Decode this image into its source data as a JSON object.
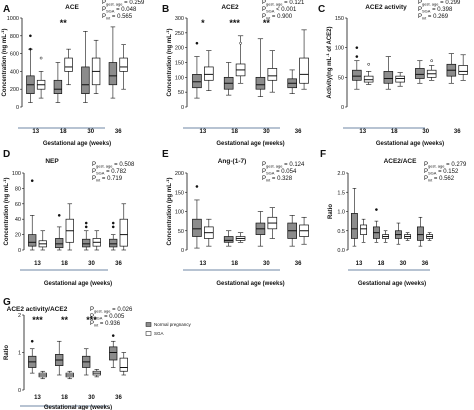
{
  "chart_data": [
    {
      "panel": "A",
      "title": "ACE",
      "type": "box",
      "categories": [
        "13",
        "18",
        "30",
        "36"
      ],
      "xlabel": "Gestational age (weeks)",
      "ylabel": "Concentration (ng mL",
      "ylim": [
        0,
        1000
      ],
      "yticks": [
        "0",
        "200",
        "400",
        "600",
        "800",
        "1000"
      ],
      "stats": [
        {
          "label": "P",
          "sub": "gest. age",
          "value": "= 0.259"
        },
        {
          "label": "P",
          "sub": "SGA",
          "value": "= 0.048"
        },
        {
          "label": "P",
          "sub": "int",
          "value": "= 0.565"
        }
      ],
      "significance": [
        {
          "category": "18",
          "text": "**"
        }
      ],
      "series": [
        {
          "name": "Normal pregnancy",
          "boxes": [
            {
              "min": 50,
              "q1": 150,
              "median": 250,
              "q3": 350,
              "max": 650,
              "outliers": [
                800,
                650
              ]
            },
            {
              "min": 50,
              "q1": 150,
              "median": 200,
              "q3": 300,
              "max": 500,
              "outliers": []
            },
            {
              "min": 50,
              "q1": 150,
              "median": 250,
              "q3": 450,
              "max": 850,
              "outliers": []
            },
            {
              "min": 100,
              "q1": 250,
              "median": 350,
              "q3": 500,
              "max": 900,
              "outliers": []
            }
          ]
        },
        {
          "name": "SGA",
          "boxes": [
            {
              "min": 100,
              "q1": 200,
              "median": 250,
              "q3": 300,
              "max": 400,
              "outliers": [
                550
              ]
            },
            {
              "min": 250,
              "q1": 400,
              "median": 450,
              "q3": 550,
              "max": 650,
              "outliers": []
            },
            {
              "min": 150,
              "q1": 250,
              "median": 400,
              "q3": 550,
              "max": 750,
              "outliers": []
            },
            {
              "min": 200,
              "q1": 400,
              "median": 450,
              "q3": 550,
              "max": 700,
              "outliers": []
            }
          ]
        }
      ]
    },
    {
      "panel": "B",
      "title": "ACE2",
      "type": "box",
      "categories": [
        "13",
        "18",
        "30",
        "36"
      ],
      "xlabel": "Gestational age (weeks)",
      "ylabel": "Concentration (ng mL",
      "ylim": [
        0,
        300
      ],
      "yticks": [
        "0",
        "50",
        "100",
        "150",
        "200",
        "250",
        "300"
      ],
      "stats": [
        {
          "label": "P",
          "sub": "gest. age",
          "value": "= 0.121"
        },
        {
          "label": "P",
          "sub": "SGA",
          "value": "< 0.001"
        },
        {
          "label": "P",
          "sub": "int",
          "value": "= 0.900"
        }
      ],
      "significance": [
        {
          "category": "13",
          "text": "*"
        },
        {
          "category": "18",
          "text": "***"
        },
        {
          "category": "30",
          "text": "**"
        }
      ],
      "series": [
        {
          "name": "Normal pregnancy",
          "boxes": [
            {
              "min": 30,
              "q1": 65,
              "median": 85,
              "q3": 110,
              "max": 170,
              "outliers": [
                215
              ]
            },
            {
              "min": 40,
              "q1": 60,
              "median": 80,
              "q3": 100,
              "max": 150,
              "outliers": []
            },
            {
              "min": 35,
              "q1": 60,
              "median": 75,
              "q3": 100,
              "max": 230,
              "outliers": []
            },
            {
              "min": 45,
              "q1": 65,
              "median": 80,
              "q3": 95,
              "max": 125,
              "outliers": []
            }
          ]
        },
        {
          "name": "SGA",
          "boxes": [
            {
              "min": 55,
              "q1": 90,
              "median": 110,
              "q3": 135,
              "max": 190,
              "outliers": []
            },
            {
              "min": 80,
              "q1": 105,
              "median": 125,
              "q3": 145,
              "max": 240,
              "outliers": [
                215
              ]
            },
            {
              "min": 50,
              "q1": 90,
              "median": 105,
              "q3": 130,
              "max": 190,
              "outliers": []
            },
            {
              "min": 60,
              "q1": 80,
              "median": 110,
              "q3": 165,
              "max": 260,
              "outliers": []
            }
          ]
        }
      ]
    },
    {
      "panel": "C",
      "title": "ACE2 activity",
      "type": "box",
      "categories": [
        "13",
        "18",
        "30",
        "36"
      ],
      "xlabel": "Gestational age (weeks)",
      "ylabel": "Activity(ng mL",
      "ylim": [
        0,
        150
      ],
      "yticks": [
        "0",
        "50",
        "100",
        "150"
      ],
      "stats": [
        {
          "label": "P",
          "sub": "gest. age",
          "value": "= 0.299"
        },
        {
          "label": "P",
          "sub": "SGA",
          "value": "= 0.398"
        },
        {
          "label": "P",
          "sub": "int",
          "value": "= 0.269"
        }
      ],
      "significance": [],
      "series": [
        {
          "name": "Normal pregnancy",
          "boxes": [
            {
              "min": 30,
              "q1": 45,
              "median": 52,
              "q3": 62,
              "max": 78,
              "outliers": [
                100,
                85
              ]
            },
            {
              "min": 30,
              "q1": 40,
              "median": 48,
              "q3": 60,
              "max": 85,
              "outliers": []
            },
            {
              "min": 40,
              "q1": 48,
              "median": 55,
              "q3": 65,
              "max": 78,
              "outliers": []
            },
            {
              "min": 40,
              "q1": 52,
              "median": 62,
              "q3": 72,
              "max": 90,
              "outliers": []
            }
          ]
        },
        {
          "name": "SGA",
          "boxes": [
            {
              "min": 38,
              "q1": 42,
              "median": 46,
              "q3": 52,
              "max": 60,
              "outliers": [
                72
              ]
            },
            {
              "min": 35,
              "q1": 42,
              "median": 48,
              "q3": 52,
              "max": 58,
              "outliers": []
            },
            {
              "min": 45,
              "q1": 50,
              "median": 56,
              "q3": 62,
              "max": 70,
              "outliers": [
                78
              ]
            },
            {
              "min": 45,
              "q1": 55,
              "median": 60,
              "q3": 70,
              "max": 88,
              "outliers": []
            }
          ]
        }
      ]
    },
    {
      "panel": "D",
      "title": "NEP",
      "type": "box",
      "categories": [
        "13",
        "18",
        "30",
        "36"
      ],
      "xlabel": "Gestational age (weeks)",
      "ylabel": "Concentration (ng mL",
      "ylim": [
        0,
        100
      ],
      "yticks": [
        "0",
        "20",
        "40",
        "60",
        "80",
        "100"
      ],
      "stats": [
        {
          "label": "P",
          "sub": "gest. age",
          "value": "= 0.508"
        },
        {
          "label": "P",
          "sub": "SGA",
          "value": "= 0.782"
        },
        {
          "label": "P",
          "sub": "int",
          "value": "= 0.719"
        }
      ],
      "significance": [],
      "series": [
        {
          "name": "Normal pregnancy",
          "boxes": [
            {
              "min": 0,
              "q1": 5,
              "median": 10,
              "q3": 20,
              "max": 45,
              "outliers": [
                90
              ]
            },
            {
              "min": 0,
              "q1": 3,
              "median": 8,
              "q3": 15,
              "max": 30,
              "outliers": [
                45
              ]
            },
            {
              "min": 0,
              "q1": 4,
              "median": 8,
              "q3": 14,
              "max": 25,
              "outliers": [
                35,
                30
              ]
            },
            {
              "min": 0,
              "q1": 4,
              "median": 8,
              "q3": 14,
              "max": 20,
              "outliers": [
                35,
                30
              ]
            }
          ]
        },
        {
          "name": "SGA",
          "boxes": [
            {
              "min": 0,
              "q1": 4,
              "median": 8,
              "q3": 12,
              "max": 25,
              "outliers": []
            },
            {
              "min": 0,
              "q1": 10,
              "median": 25,
              "q3": 40,
              "max": 60,
              "outliers": []
            },
            {
              "min": 0,
              "q1": 5,
              "median": 10,
              "q3": 15,
              "max": 25,
              "outliers": []
            },
            {
              "min": 0,
              "q1": 5,
              "median": 20,
              "q3": 40,
              "max": 60,
              "outliers": []
            }
          ]
        }
      ]
    },
    {
      "panel": "E",
      "title": "Ang-(1-7)",
      "type": "box",
      "categories": [
        "13",
        "18",
        "30",
        "36"
      ],
      "xlabel": "Gestational age (weeks)",
      "ylabel": "Concentration (pg mL",
      "ylim": [
        0,
        200
      ],
      "yticks": [
        "0",
        "50",
        "100",
        "150",
        "200"
      ],
      "stats": [
        {
          "label": "P",
          "sub": "gest. age",
          "value": "= 0.124"
        },
        {
          "label": "P",
          "sub": "SGA",
          "value": "= 0.054"
        },
        {
          "label": "P",
          "sub": "int",
          "value": "= 0.328"
        }
      ],
      "significance": [],
      "series": [
        {
          "name": "Normal pregnancy",
          "boxes": [
            {
              "min": 5,
              "q1": 35,
              "median": 55,
              "q3": 80,
              "max": 130,
              "outliers": [
                165
              ]
            },
            {
              "min": 10,
              "q1": 20,
              "median": 25,
              "q3": 35,
              "max": 50,
              "outliers": []
            },
            {
              "min": 10,
              "q1": 40,
              "median": 55,
              "q3": 70,
              "max": 100,
              "outliers": []
            },
            {
              "min": 10,
              "q1": 30,
              "median": 50,
              "q3": 70,
              "max": 90,
              "outliers": []
            }
          ]
        },
        {
          "name": "SGA",
          "boxes": [
            {
              "min": 10,
              "q1": 30,
              "median": 45,
              "q3": 60,
              "max": 80,
              "outliers": []
            },
            {
              "min": 20,
              "q1": 25,
              "median": 30,
              "q3": 35,
              "max": 45,
              "outliers": []
            },
            {
              "min": 30,
              "q1": 55,
              "median": 70,
              "q3": 85,
              "max": 110,
              "outliers": []
            },
            {
              "min": 15,
              "q1": 35,
              "median": 50,
              "q3": 65,
              "max": 85,
              "outliers": []
            }
          ]
        }
      ]
    },
    {
      "panel": "F",
      "title": "ACE2/ACE",
      "type": "box",
      "categories": [
        "13",
        "18",
        "30",
        "36"
      ],
      "xlabel": "Gestational age (weeks)",
      "ylabel": "Ratio",
      "ylim": [
        0,
        2.0
      ],
      "yticks": [
        "0.0",
        "0.5",
        "1.0",
        "1.5",
        "2.0"
      ],
      "stats": [
        {
          "label": "P",
          "sub": "gest. age",
          "value": "= 0.279"
        },
        {
          "label": "P",
          "sub": "SGA",
          "value": "= 0.152"
        },
        {
          "label": "P",
          "sub": "int",
          "value": "= 0.562"
        }
      ],
      "significance": [],
      "series": [
        {
          "name": "Normal pregnancy",
          "boxes": [
            {
              "min": 0.1,
              "q1": 0.3,
              "median": 0.55,
              "q3": 0.95,
              "max": 1.6,
              "outliers": []
            },
            {
              "min": 0.2,
              "q1": 0.3,
              "median": 0.45,
              "q3": 0.6,
              "max": 0.75,
              "outliers": [
                1.05
              ]
            },
            {
              "min": 0.15,
              "q1": 0.3,
              "median": 0.4,
              "q3": 0.5,
              "max": 0.7,
              "outliers": []
            },
            {
              "min": 0.1,
              "q1": 0.25,
              "median": 0.4,
              "q3": 0.6,
              "max": 0.85,
              "outliers": []
            }
          ]
        },
        {
          "name": "SGA",
          "boxes": [
            {
              "min": 0.2,
              "q1": 0.4,
              "median": 0.55,
              "q3": 0.65,
              "max": 0.8,
              "outliers": []
            },
            {
              "min": 0.2,
              "q1": 0.3,
              "median": 0.35,
              "q3": 0.4,
              "max": 0.5,
              "outliers": []
            },
            {
              "min": 0.25,
              "q1": 0.3,
              "median": 0.35,
              "q3": 0.4,
              "max": 0.45,
              "outliers": []
            },
            {
              "min": 0.25,
              "q1": 0.3,
              "median": 0.35,
              "q3": 0.4,
              "max": 0.45,
              "outliers": []
            }
          ]
        }
      ]
    },
    {
      "panel": "G",
      "title": "ACE2 activity/ACE2",
      "type": "box",
      "categories": [
        "13",
        "18",
        "30",
        "36"
      ],
      "xlabel": "Gestational age (weeks)",
      "ylabel": "Ratio",
      "ylim": [
        0,
        2.0
      ],
      "yticks": [
        "0",
        "1",
        "2"
      ],
      "stats": [
        {
          "label": "P",
          "sub": "gest. age",
          "value": "= 0.026"
        },
        {
          "label": "P",
          "sub": "SGA",
          "value": "= 0.005"
        },
        {
          "label": "P",
          "sub": "int",
          "value": "= 0.936"
        }
      ],
      "significance": [
        {
          "category": "13",
          "text": "***"
        },
        {
          "category": "18",
          "text": "**"
        },
        {
          "category": "30",
          "text": "***"
        }
      ],
      "legend": {
        "items": [
          "Normal pregnancy",
          "SGA"
        ],
        "placement": "right"
      },
      "series": [
        {
          "name": "Normal pregnancy",
          "boxes": [
            {
              "min": 0.45,
              "q1": 0.6,
              "median": 0.75,
              "q3": 0.9,
              "max": 1.1,
              "outliers": [
                1.3
              ]
            },
            {
              "min": 0.4,
              "q1": 0.65,
              "median": 0.8,
              "q3": 0.95,
              "max": 1.3,
              "outliers": []
            },
            {
              "min": 0.4,
              "q1": 0.6,
              "median": 0.75,
              "q3": 0.9,
              "max": 1.1,
              "outliers": []
            },
            {
              "min": 0.6,
              "q1": 0.8,
              "median": 1.0,
              "q3": 1.15,
              "max": 1.3,
              "outliers": [
                1.45
              ]
            }
          ]
        },
        {
          "name": "SGA",
          "boxes": [
            {
              "min": 0.3,
              "q1": 0.35,
              "median": 0.4,
              "q3": 0.45,
              "max": 0.5,
              "outliers": []
            },
            {
              "min": 0.3,
              "q1": 0.35,
              "median": 0.4,
              "q3": 0.45,
              "max": 0.5,
              "outliers": []
            },
            {
              "min": 0.35,
              "q1": 0.4,
              "median": 0.45,
              "q3": 0.5,
              "max": 0.55,
              "outliers": []
            },
            {
              "min": 0.4,
              "q1": 0.5,
              "median": 0.6,
              "q3": 0.85,
              "max": 1.0,
              "outliers": []
            }
          ]
        }
      ]
    }
  ],
  "colors": {
    "normal": "#8c8c8c",
    "sga": "#ffffff",
    "stroke": "#111111",
    "xline": "#3f5f87"
  }
}
